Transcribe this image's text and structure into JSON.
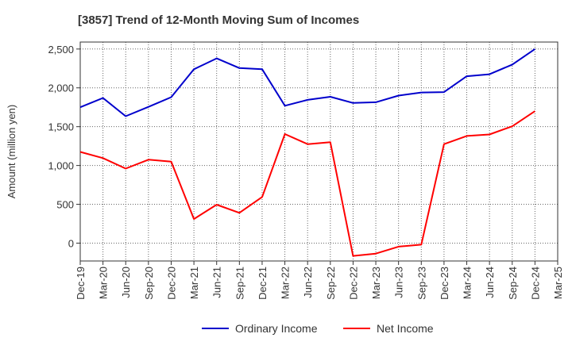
{
  "chart_data": {
    "type": "line",
    "title": "[3857]  Trend of 12-Month Moving Sum of Incomes",
    "xlabel": "",
    "ylabel": "Amount (million yen)",
    "ylim": [
      -230,
      2590
    ],
    "yticks": [
      0,
      500,
      1000,
      1500,
      2000,
      2500
    ],
    "ytick_labels": [
      "0",
      "500",
      "1,000",
      "1,500",
      "2,000",
      "2,500"
    ],
    "categories": [
      "Dec-19",
      "Mar-20",
      "Jun-20",
      "Sep-20",
      "Dec-20",
      "Mar-21",
      "Jun-21",
      "Sep-21",
      "Dec-21",
      "Mar-22",
      "Jun-22",
      "Sep-22",
      "Dec-22",
      "Mar-23",
      "Jun-23",
      "Sep-23",
      "Dec-23",
      "Mar-24",
      "Jun-24",
      "Sep-24",
      "Dec-24",
      "Mar-25"
    ],
    "grid": true,
    "legend_position": "bottom-center",
    "series": [
      {
        "name": "Ordinary Income",
        "color": "#0000cc",
        "values": [
          1750,
          1870,
          1635,
          1755,
          1880,
          2240,
          2380,
          2255,
          2240,
          1770,
          1845,
          1885,
          1805,
          1815,
          1900,
          1940,
          1945,
          2150,
          2175,
          2300,
          2500,
          null
        ]
      },
      {
        "name": "Net Income",
        "color": "#ff0000",
        "values": [
          1175,
          1095,
          960,
          1075,
          1050,
          310,
          495,
          390,
          595,
          1405,
          1275,
          1300,
          -165,
          -135,
          -45,
          -20,
          1275,
          1380,
          1400,
          1505,
          1700,
          null
        ]
      }
    ]
  }
}
